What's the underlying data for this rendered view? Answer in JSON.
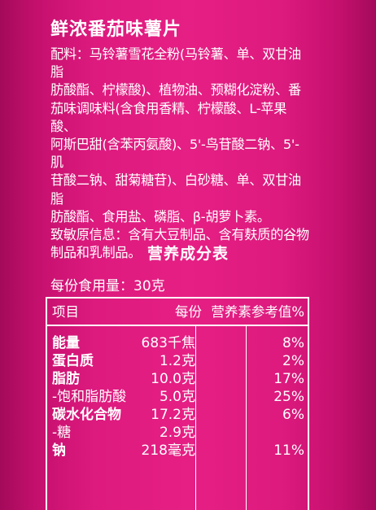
{
  "product": {
    "name": "鲜浓番茄味薯片"
  },
  "ingredients": {
    "lines": [
      "配料：马铃薯雪花全粉(马铃薯、单、双甘油脂",
      "肪酸酯、柠檬酸)、植物油、预糊化淀粉、番",
      "茄味调味料(含食用香精、柠檬酸、L-苹果酸、",
      "阿斯巴甜(含苯丙氨酸)、5'-鸟苷酸二钠、5'-肌",
      "苷酸二钠、甜菊糖苷)、白砂糖、单、双甘油脂",
      "肪酸酯、食用盐、磷脂、β-胡萝卜素。",
      "致敏原信息：含有大豆制品、含有麸质的谷物",
      "制品和乳制品。"
    ]
  },
  "nutrition": {
    "title": "营养成分表",
    "serving": "每份食用量：30克",
    "headers": {
      "item": "项目",
      "per_serving": "每份",
      "nrv": "营养素参考值%"
    },
    "rows": [
      {
        "name": "能量",
        "amount": "683千焦",
        "nrv": "8%"
      },
      {
        "name": "蛋白质",
        "amount": "1.2克",
        "nrv": "2%"
      },
      {
        "name": "脂肪",
        "amount": "10.0克",
        "nrv": "17%"
      },
      {
        "name": "-饱和脂肪酸",
        "amount": "5.0克",
        "nrv": "25%"
      },
      {
        "name": "碳水化合物",
        "amount": "17.2克",
        "nrv": "6%"
      },
      {
        "name": "-糖",
        "amount": "2.9克",
        "nrv": ""
      },
      {
        "name": "钠",
        "amount": "218毫克",
        "nrv": "11%"
      }
    ]
  }
}
